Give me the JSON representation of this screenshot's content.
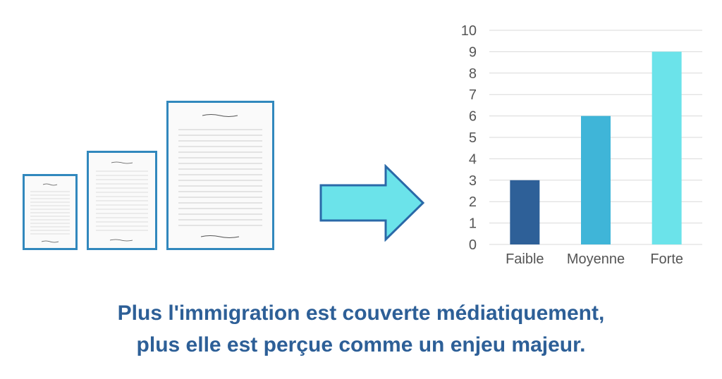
{
  "documents": [
    {
      "name": "small-document"
    },
    {
      "name": "medium-document"
    },
    {
      "name": "large-document"
    }
  ],
  "colors": {
    "document_border": "#3188bd",
    "arrow_fill": "#6be3ea",
    "arrow_stroke": "#2a69a8",
    "caption": "#2d5f97",
    "grid": "#d9d9d9",
    "axis_text": "#555555"
  },
  "chart_data": {
    "type": "bar",
    "categories": [
      "Faible",
      "Moyenne",
      "Forte"
    ],
    "values": [
      3,
      6,
      9
    ],
    "colors": [
      "#2e6098",
      "#3fb5d8",
      "#6be3ea"
    ],
    "ylim": [
      0,
      10
    ],
    "yticks": [
      0,
      1,
      2,
      3,
      4,
      5,
      6,
      7,
      8,
      9,
      10
    ],
    "grid": true,
    "legend": "none"
  },
  "caption": {
    "line1": "Plus l'immigration est couverte médiatiquement,",
    "line2": "plus elle est perçue comme un enjeu majeur."
  }
}
